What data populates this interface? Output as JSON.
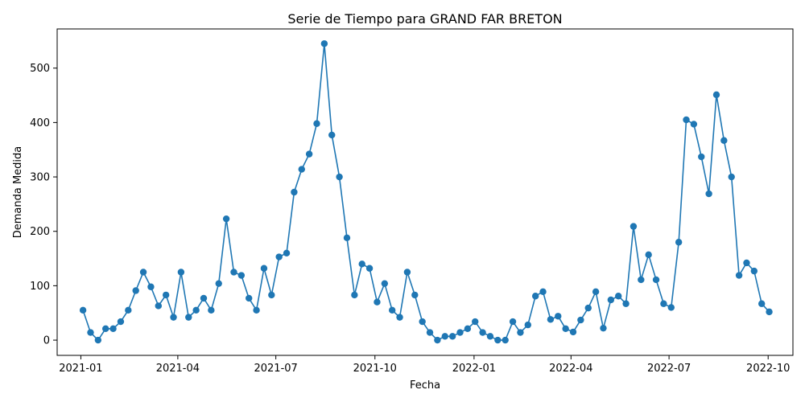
{
  "chart_data": {
    "type": "line",
    "title": "Serie de Tiempo para GRAND FAR BRETON",
    "xlabel": "Fecha",
    "ylabel": "Demanda Medida",
    "x_ticks": [
      "2021-01",
      "2021-04",
      "2021-07",
      "2021-10",
      "2022-01",
      "2022-04",
      "2022-07",
      "2022-10"
    ],
    "y_ticks": [
      0,
      100,
      200,
      300,
      400,
      500
    ],
    "ylim": [
      -28,
      572
    ],
    "xlim": [
      "2020-12-10",
      "2022-10-24"
    ],
    "grid": false,
    "legend": "none",
    "line_color": "#1f77b4",
    "series": [
      {
        "x": [
          "2021-01-03",
          "2021-01-10",
          "2021-01-17",
          "2021-01-24",
          "2021-01-31",
          "2021-02-07",
          "2021-02-14",
          "2021-02-21",
          "2021-02-28",
          "2021-03-07",
          "2021-03-14",
          "2021-03-21",
          "2021-03-28",
          "2021-04-04",
          "2021-04-11",
          "2021-04-18",
          "2021-04-25",
          "2021-05-02",
          "2021-05-09",
          "2021-05-16",
          "2021-05-23",
          "2021-05-30",
          "2021-06-06",
          "2021-06-13",
          "2021-06-20",
          "2021-06-27",
          "2021-07-04",
          "2021-07-11",
          "2021-07-18",
          "2021-07-25",
          "2021-08-01",
          "2021-08-08",
          "2021-08-15",
          "2021-08-22",
          "2021-08-29",
          "2021-09-05",
          "2021-09-12",
          "2021-09-19",
          "2021-09-26",
          "2021-10-03",
          "2021-10-10",
          "2021-10-17",
          "2021-10-24",
          "2021-10-31",
          "2021-11-07",
          "2021-11-14",
          "2021-11-21",
          "2021-11-28",
          "2021-12-05",
          "2021-12-12",
          "2021-12-19",
          "2021-12-26",
          "2022-01-02",
          "2022-01-09",
          "2022-01-16",
          "2022-01-23",
          "2022-01-30",
          "2022-02-06",
          "2022-02-13",
          "2022-02-20",
          "2022-02-27",
          "2022-03-06",
          "2022-03-13",
          "2022-03-20",
          "2022-03-27",
          "2022-04-03",
          "2022-04-10",
          "2022-04-17",
          "2022-04-24",
          "2022-05-01",
          "2022-05-08",
          "2022-05-15",
          "2022-05-22",
          "2022-05-29",
          "2022-06-05",
          "2022-06-12",
          "2022-06-19",
          "2022-06-26",
          "2022-07-03",
          "2022-07-10",
          "2022-07-17",
          "2022-07-24",
          "2022-07-31",
          "2022-08-07",
          "2022-08-14",
          "2022-08-21",
          "2022-08-28",
          "2022-09-04",
          "2022-09-11",
          "2022-09-18",
          "2022-09-25",
          "2022-10-02"
        ],
        "values": [
          55,
          14,
          0,
          21,
          21,
          34,
          55,
          91,
          125,
          98,
          63,
          83,
          42,
          125,
          42,
          55,
          77,
          55,
          104,
          223,
          125,
          119,
          77,
          55,
          132,
          83,
          153,
          160,
          272,
          314,
          342,
          398,
          545,
          377,
          300,
          188,
          83,
          140,
          132,
          70,
          104,
          55,
          42,
          125,
          83,
          34,
          14,
          0,
          7,
          7,
          14,
          21,
          34,
          14,
          7,
          0,
          0,
          34,
          14,
          28,
          81,
          89,
          38,
          44,
          21,
          15,
          37,
          59,
          89,
          22,
          74,
          81,
          67,
          209,
          111,
          157,
          111,
          67,
          60,
          180,
          405,
          397,
          337,
          269,
          451,
          367,
          300,
          119,
          142,
          127,
          67,
          52
        ]
      }
    ]
  }
}
